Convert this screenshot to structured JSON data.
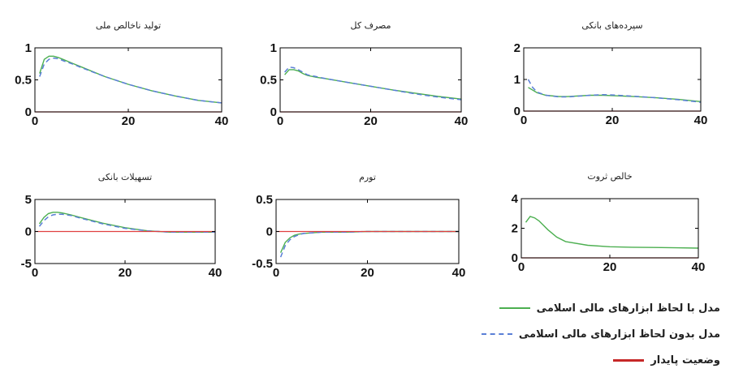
{
  "chart_data": [
    {
      "type": "line",
      "title": "تولید ناخالص ملی",
      "xlim": [
        0,
        40
      ],
      "ylim": [
        0,
        1
      ],
      "xticks": [
        "0",
        "20",
        "40"
      ],
      "yticks": [
        "0",
        "0.5",
        "1"
      ],
      "grid": false,
      "series": [
        {
          "name": "مدل با لحاظ ابزارهای مالی اسلامی",
          "color": "#4caf50",
          "dash": "solid",
          "x": [
            1,
            2,
            3,
            4,
            5,
            6,
            8,
            10,
            15,
            20,
            25,
            30,
            35,
            40
          ],
          "y": [
            0.6,
            0.82,
            0.87,
            0.87,
            0.85,
            0.82,
            0.76,
            0.7,
            0.55,
            0.43,
            0.33,
            0.25,
            0.18,
            0.14
          ]
        },
        {
          "name": "مدل بدون لحاظ ابزارهای مالی اسلامی",
          "color": "#5a7fd6",
          "dash": "dashed",
          "x": [
            1,
            2,
            3,
            4,
            5,
            6,
            8,
            10,
            15,
            20,
            25,
            30,
            35,
            40
          ],
          "y": [
            0.55,
            0.75,
            0.82,
            0.84,
            0.83,
            0.8,
            0.75,
            0.69,
            0.55,
            0.43,
            0.33,
            0.25,
            0.18,
            0.14
          ]
        },
        {
          "name": "وضعیت پایدار",
          "color": "#e04040",
          "dash": "solid",
          "x": [
            0,
            40
          ],
          "y": [
            0,
            0
          ]
        }
      ]
    },
    {
      "type": "line",
      "title": "مصرف کل",
      "xlim": [
        0,
        40
      ],
      "ylim": [
        0,
        1
      ],
      "xticks": [
        "0",
        "20",
        "40"
      ],
      "yticks": [
        "0",
        "0.5",
        "1"
      ],
      "grid": false,
      "series": [
        {
          "name": "مدل با لحاظ ابزارهای مالی اسلامی",
          "color": "#4caf50",
          "dash": "solid",
          "x": [
            1,
            2,
            3,
            4,
            5,
            6,
            8,
            10,
            15,
            20,
            25,
            30,
            35,
            40
          ],
          "y": [
            0.58,
            0.66,
            0.66,
            0.64,
            0.6,
            0.57,
            0.54,
            0.52,
            0.46,
            0.4,
            0.34,
            0.29,
            0.24,
            0.2
          ]
        },
        {
          "name": "مدل بدون لحاظ ابزارهای مالی اسلامی",
          "color": "#5a7fd6",
          "dash": "dashed",
          "x": [
            1,
            2,
            3,
            4,
            5,
            6,
            8,
            10,
            15,
            20,
            25,
            30,
            35,
            40
          ],
          "y": [
            0.62,
            0.7,
            0.69,
            0.66,
            0.62,
            0.58,
            0.55,
            0.52,
            0.46,
            0.4,
            0.34,
            0.28,
            0.23,
            0.19
          ]
        },
        {
          "name": "وضعیت پایدار",
          "color": "#e04040",
          "dash": "solid",
          "x": [
            0,
            40
          ],
          "y": [
            0,
            0
          ]
        }
      ]
    },
    {
      "type": "line",
      "title": "سپرده‌های بانکی",
      "xlim": [
        0,
        40
      ],
      "ylim": [
        0,
        2
      ],
      "xticks": [
        "0",
        "20",
        "40"
      ],
      "yticks": [
        "0",
        "1",
        "2"
      ],
      "grid": false,
      "series": [
        {
          "name": "مدل با لحاظ ابزارهای مالی اسلامی",
          "color": "#4caf50",
          "dash": "solid",
          "x": [
            1,
            3,
            5,
            8,
            10,
            15,
            18,
            20,
            25,
            30,
            35,
            40
          ],
          "y": [
            0.75,
            0.58,
            0.5,
            0.46,
            0.46,
            0.5,
            0.5,
            0.49,
            0.46,
            0.42,
            0.37,
            0.3
          ]
        },
        {
          "name": "مدل بدون لحاظ ابزارهای مالی اسلامی",
          "color": "#5a7fd6",
          "dash": "dashed",
          "x": [
            1,
            2,
            3,
            5,
            8,
            10,
            15,
            18,
            20,
            25,
            30,
            35,
            40
          ],
          "y": [
            1.0,
            0.75,
            0.6,
            0.5,
            0.45,
            0.45,
            0.5,
            0.52,
            0.51,
            0.47,
            0.42,
            0.36,
            0.28
          ]
        },
        {
          "name": "وضعیت پایدار",
          "color": "#e04040",
          "dash": "solid",
          "x": [
            0,
            40
          ],
          "y": [
            0,
            0
          ]
        }
      ]
    },
    {
      "type": "line",
      "title": "تسهیلات بانکی",
      "xlim": [
        0,
        40
      ],
      "ylim": [
        -5,
        5
      ],
      "xticks": [
        "0",
        "20",
        "40"
      ],
      "yticks": [
        "-5",
        "0",
        "5"
      ],
      "grid": false,
      "series": [
        {
          "name": "مدل با لحاظ ابزارهای مالی اسلامی",
          "color": "#4caf50",
          "dash": "solid",
          "x": [
            1,
            2,
            3,
            4,
            5,
            6,
            8,
            10,
            15,
            20,
            25,
            30,
            35,
            40
          ],
          "y": [
            1.2,
            2.2,
            2.8,
            3.0,
            3.0,
            2.9,
            2.6,
            2.2,
            1.3,
            0.6,
            0.1,
            -0.1,
            -0.1,
            -0.1
          ]
        },
        {
          "name": "مدل بدون لحاظ ابزارهای مالی اسلامی",
          "color": "#5a7fd6",
          "dash": "dashed",
          "x": [
            1,
            2,
            3,
            4,
            5,
            6,
            8,
            10,
            15,
            20,
            25,
            30,
            35,
            40
          ],
          "y": [
            0.8,
            1.7,
            2.3,
            2.6,
            2.7,
            2.7,
            2.5,
            2.1,
            1.2,
            0.5,
            0.1,
            -0.1,
            -0.1,
            -0.1
          ]
        },
        {
          "name": "وضعیت پایدار",
          "color": "#e04040",
          "dash": "solid",
          "x": [
            0,
            40
          ],
          "y": [
            0,
            0
          ]
        }
      ]
    },
    {
      "type": "line",
      "title": "تورم",
      "xlim": [
        0,
        40
      ],
      "ylim": [
        -0.5,
        0.5
      ],
      "xticks": [
        "0",
        "20",
        "40"
      ],
      "yticks": [
        "-0.5",
        "0",
        "0.5"
      ],
      "grid": false,
      "series": [
        {
          "name": "مدل با لحاظ ابزارهای مالی اسلامی",
          "color": "#4caf50",
          "dash": "solid",
          "x": [
            1,
            2,
            3,
            4,
            5,
            6,
            8,
            10,
            15,
            20,
            30,
            40
          ],
          "y": [
            -0.33,
            -0.17,
            -0.1,
            -0.06,
            -0.04,
            -0.03,
            -0.02,
            -0.01,
            -0.01,
            0.0,
            0.0,
            0.0
          ]
        },
        {
          "name": "مدل بدون لحاظ ابزارهای مالی اسلامی",
          "color": "#5a7fd6",
          "dash": "dashed",
          "x": [
            1,
            2,
            3,
            4,
            5,
            6,
            8,
            10,
            15,
            20,
            30,
            40
          ],
          "y": [
            -0.4,
            -0.22,
            -0.13,
            -0.08,
            -0.05,
            -0.03,
            -0.02,
            -0.01,
            -0.01,
            0.0,
            0.0,
            0.0
          ]
        },
        {
          "name": "وضعیت پایدار",
          "color": "#e04040",
          "dash": "solid",
          "x": [
            0,
            40
          ],
          "y": [
            0,
            0
          ]
        }
      ]
    },
    {
      "type": "line",
      "title": "خالص ثروت",
      "xlim": [
        0,
        40
      ],
      "ylim": [
        0,
        4
      ],
      "xticks": [
        "0",
        "20",
        "40"
      ],
      "yticks": [
        "0",
        "2",
        "4"
      ],
      "grid": false,
      "series": [
        {
          "name": "مدل با لحاظ ابزارهای مالی اسلامی",
          "color": "#4caf50",
          "dash": "solid",
          "x": [
            1,
            2,
            3,
            4,
            5,
            6,
            8,
            10,
            15,
            20,
            25,
            30,
            35,
            40
          ],
          "y": [
            2.4,
            2.8,
            2.7,
            2.5,
            2.2,
            1.9,
            1.4,
            1.1,
            0.85,
            0.75,
            0.72,
            0.7,
            0.68,
            0.66
          ]
        },
        {
          "name": "وضعیت پایدار",
          "color": "#e04040",
          "dash": "solid",
          "x": [
            0,
            40
          ],
          "y": [
            0,
            0
          ]
        }
      ]
    }
  ],
  "legend": {
    "items": [
      {
        "label": "مدل با لحاظ ابزارهای مالی اسلامی",
        "color": "#4caf50",
        "style": "solid"
      },
      {
        "label": "مدل بدون لحاظ ابزارهای مالی اسلامی",
        "color": "#5a7fd6",
        "style": "dashed"
      },
      {
        "label": "وضعیت پایدار",
        "color": "#c62828",
        "style": "solid"
      }
    ]
  }
}
